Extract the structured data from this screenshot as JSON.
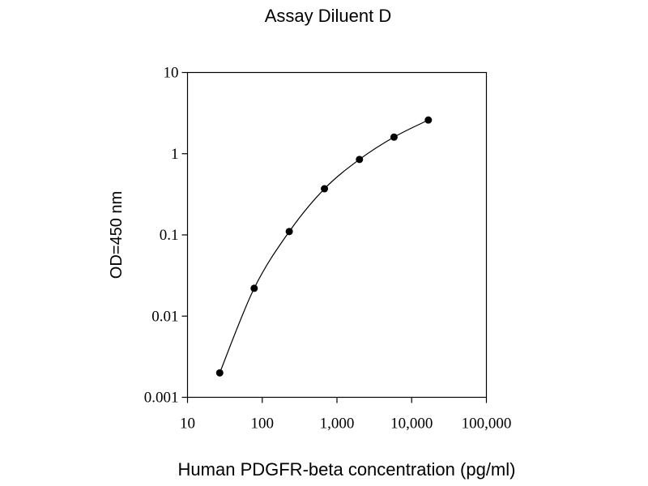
{
  "chart_data": {
    "type": "scatter",
    "title": "Assay Diluent D",
    "xlabel": "Human PDGFR-beta concentration (pg/ml)",
    "ylabel": "OD=450 nm",
    "x_scale": "log",
    "y_scale": "log",
    "xlim": [
      10,
      100000
    ],
    "ylim": [
      0.001,
      10
    ],
    "x_ticks": [
      {
        "value": 10,
        "label": "10"
      },
      {
        "value": 100,
        "label": "100"
      },
      {
        "value": 1000,
        "label": "1,000"
      },
      {
        "value": 10000,
        "label": "10,000"
      },
      {
        "value": 100000,
        "label": "100,000"
      }
    ],
    "y_ticks": [
      {
        "value": 0.001,
        "label": "0.001"
      },
      {
        "value": 0.01,
        "label": "0.01"
      },
      {
        "value": 0.1,
        "label": "0.1"
      },
      {
        "value": 1,
        "label": "1"
      },
      {
        "value": 10,
        "label": "10"
      }
    ],
    "grid": false,
    "legend": "none",
    "series": [
      {
        "x": [
          27,
          78,
          230,
          680,
          2000,
          5800,
          16700
        ],
        "y": [
          0.002,
          0.022,
          0.11,
          0.37,
          0.85,
          1.6,
          2.6
        ],
        "marker": "circle",
        "line": "smooth",
        "color": "#000000"
      }
    ]
  }
}
